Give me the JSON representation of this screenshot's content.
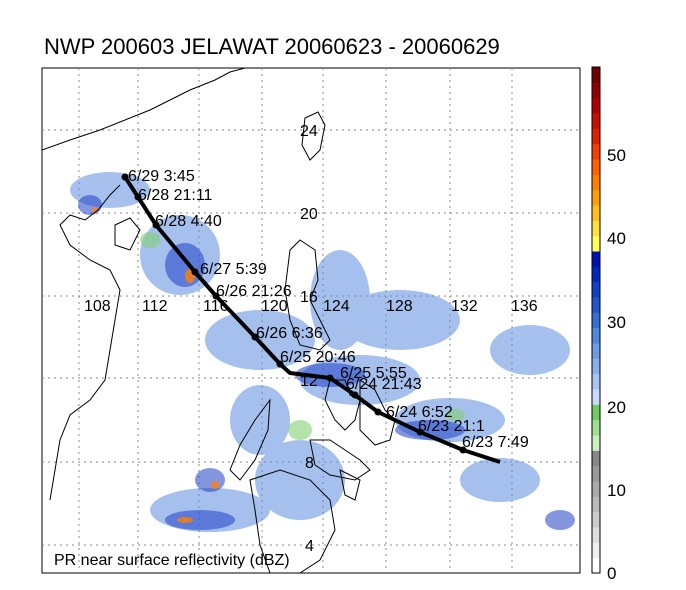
{
  "title": "NWP 200603 JELAWAT 20060623 - 20060629",
  "note": "PR near surface reflectivity (dBZ)",
  "longitude_labels": [
    "108",
    "112",
    "116",
    "120",
    "124",
    "128",
    "132",
    "136"
  ],
  "latitude_labels": [
    "24",
    "20",
    "16",
    "12",
    "8",
    "4"
  ],
  "track_points": [
    {
      "label": "6/29 3:45"
    },
    {
      "label": "6/28 21:11"
    },
    {
      "label": "6/28 4:40"
    },
    {
      "label": "6/27 5:39"
    },
    {
      "label": "6/26 21:26"
    },
    {
      "label": "6/26 6:36"
    },
    {
      "label": "6/25 20:46"
    },
    {
      "label": "6/25 5:55"
    },
    {
      "label": "6/24 21:43"
    },
    {
      "label": "6/24 6:52"
    },
    {
      "label": "6/23 21:1"
    },
    {
      "label": "6/23 7:49"
    }
  ],
  "colorbar": {
    "tick_labels": [
      "0",
      "10",
      "20",
      "30",
      "40",
      "50"
    ],
    "colors": [
      "#ffffff",
      "#eeeeee",
      "#dddddd",
      "#cccccc",
      "#bbbbbb",
      "#aaaaaa",
      "#999999",
      "#888888",
      "#c8f0c0",
      "#a0e090",
      "#70cc60",
      "#c8d8ff",
      "#a8c4f4",
      "#88b0ec",
      "#6c9ce4",
      "#5088dc",
      "#3470d4",
      "#2058cc",
      "#1040c4",
      "#0028bc",
      "#0010b0",
      "#ffff60",
      "#ffe040",
      "#ffc020",
      "#ffa000",
      "#ff8000",
      "#ff6000",
      "#f04000",
      "#e02000",
      "#c81000",
      "#b00000",
      "#900000",
      "#700000"
    ]
  }
}
